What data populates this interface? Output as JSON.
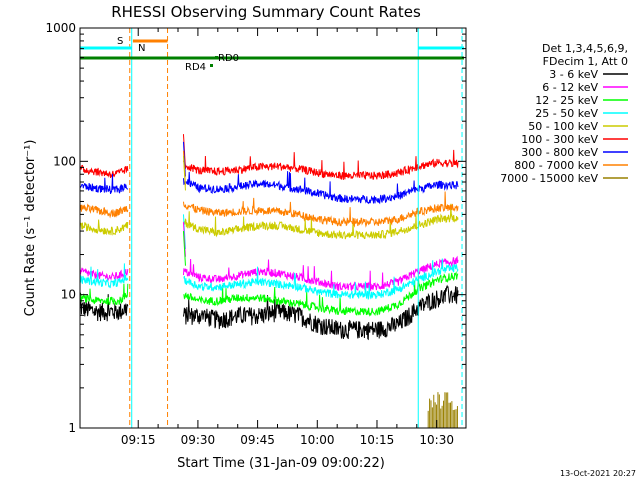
{
  "chart_data": {
    "type": "line",
    "title": "RHESSI Observing Summary Count Rates",
    "xlabel": "Start Time (31-Jan-09 09:00:22)",
    "ylabel": "Count Rate (s⁻¹ detector⁻¹)",
    "yscale": "log",
    "ylim": [
      1,
      1000
    ],
    "xlim_minutes": [
      0,
      97
    ],
    "yticks": [
      {
        "value": 1,
        "label": "1"
      },
      {
        "value": 10,
        "label": "10"
      },
      {
        "value": 100,
        "label": "100"
      },
      {
        "value": 1000,
        "label": "1000"
      }
    ],
    "xticks": [
      {
        "value": 14.63,
        "label": "09:15"
      },
      {
        "value": 29.63,
        "label": "09:30"
      },
      {
        "value": 44.63,
        "label": "09:45"
      },
      {
        "value": 59.63,
        "label": "10:00"
      },
      {
        "value": 74.63,
        "label": "10:15"
      },
      {
        "value": 89.63,
        "label": "10:30"
      }
    ],
    "legend": {
      "placement": "right",
      "header": [
        "Det 1,3,4,5,6,9,",
        "FDecim 1, Att 0"
      ],
      "entries": [
        {
          "label": "3 - 6 keV",
          "color": "#000000"
        },
        {
          "label": "6 - 12 keV",
          "color": "#ff00ff"
        },
        {
          "label": "12 - 25 keV",
          "color": "#00ff00"
        },
        {
          "label": "25 - 50 keV",
          "color": "#00ffff"
        },
        {
          "label": "50 - 100 keV",
          "color": "#cccc00"
        },
        {
          "label": "100 - 300 keV",
          "color": "#ff0000"
        },
        {
          "label": "300 - 800 keV",
          "color": "#0000ff"
        },
        {
          "label": "800 - 7000 keV",
          "color": "#ff8000"
        },
        {
          "label": "7000 - 15000 keV",
          "color": "#998000"
        }
      ]
    },
    "series": [
      {
        "name": "3 - 6 keV",
        "color": "#000000",
        "segments": [
          {
            "x": [
              0,
              4,
              8,
              10,
              12
            ],
            "y": [
              8,
              7.5,
              7.5,
              7.5,
              8
            ]
          },
          {
            "x": [
              26,
              30,
              35,
              40,
              45,
              50,
              55,
              60,
              65,
              68,
              72,
              75,
              80,
              85,
              88,
              90,
              93,
              95
            ],
            "y": [
              7,
              7,
              6.5,
              7,
              7,
              7.5,
              7,
              6,
              5.5,
              5.5,
              5.5,
              5.5,
              6,
              8,
              9,
              9.5,
              10,
              10
            ]
          }
        ]
      },
      {
        "name": "6 - 12 keV",
        "color": "#ff00ff",
        "segments": [
          {
            "x": [
              0,
              4,
              8,
              10,
              12
            ],
            "y": [
              15,
              14,
              13.5,
              14,
              15
            ]
          },
          {
            "x": [
              26,
              30,
              35,
              40,
              45,
              50,
              55,
              60,
              65,
              68,
              72,
              75,
              80,
              85,
              90,
              95
            ],
            "y": [
              15,
              13.5,
              13,
              14,
              15,
              14.5,
              13.5,
              12.5,
              11.5,
              11.5,
              11.5,
              11.5,
              12.5,
              15,
              17,
              18
            ]
          }
        ]
      },
      {
        "name": "12 - 25 keV",
        "color": "#00ff00",
        "segments": [
          {
            "x": [
              0,
              4,
              8,
              10,
              12
            ],
            "y": [
              9.5,
              9,
              9,
              9,
              10
            ]
          },
          {
            "x": [
              26,
              30,
              35,
              40,
              45,
              50,
              55,
              60,
              65,
              68,
              72,
              75,
              80,
              85,
              90,
              95
            ],
            "y": [
              10,
              9,
              9,
              9.5,
              9.5,
              9,
              8.5,
              8,
              7.5,
              7.5,
              7.5,
              7.5,
              8.5,
              11,
              13,
              14
            ]
          }
        ]
      },
      {
        "name": "25 - 50 keV",
        "color": "#00ffff",
        "segments": [
          {
            "x": [
              0,
              4,
              8,
              10,
              12
            ],
            "y": [
              13,
              12.5,
              12,
              12.5,
              13.5
            ]
          },
          {
            "x": [
              26,
              30,
              35,
              40,
              45,
              50,
              55,
              60,
              65,
              68,
              72,
              75,
              80,
              85,
              90,
              95
            ],
            "y": [
              13,
              11.5,
              11.5,
              12,
              12.5,
              12,
              11.5,
              10.5,
              10,
              10,
              10,
              10,
              11,
              13,
              15,
              16
            ]
          }
        ]
      },
      {
        "name": "50 - 100 keV",
        "color": "#cccc00",
        "segments": [
          {
            "x": [
              0,
              4,
              8,
              10,
              12
            ],
            "y": [
              33,
              31,
              30,
              31,
              33
            ]
          },
          {
            "x": [
              26,
              30,
              35,
              40,
              45,
              50,
              55,
              60,
              65,
              68,
              72,
              75,
              80,
              85,
              90,
              95
            ],
            "y": [
              35,
              31,
              29,
              31,
              33,
              33,
              31,
              29,
              28,
              28,
              28,
              28,
              30,
              33,
              37,
              38
            ]
          }
        ]
      },
      {
        "name": "100 - 300 keV",
        "color": "#ff0000",
        "segments": [
          {
            "x": [
              0,
              4,
              8,
              10,
              12
            ],
            "y": [
              88,
              84,
              80,
              82,
              88
            ]
          },
          {
            "x": [
              26,
              30,
              35,
              40,
              45,
              50,
              55,
              60,
              65,
              68,
              72,
              75,
              80,
              85,
              90,
              95
            ],
            "y": [
              95,
              85,
              84,
              87,
              91,
              92,
              88,
              82,
              78,
              78,
              78,
              78,
              82,
              92,
              98,
              96
            ]
          }
        ]
      },
      {
        "name": "300 - 800 keV",
        "color": "#0000ff",
        "segments": [
          {
            "x": [
              0,
              4,
              8,
              10,
              12
            ],
            "y": [
              66,
              63,
              61,
              62,
              66
            ]
          },
          {
            "x": [
              26,
              30,
              35,
              40,
              45,
              50,
              55,
              60,
              65,
              68,
              72,
              75,
              80,
              85,
              90,
              95
            ],
            "y": [
              72,
              63,
              62,
              65,
              68,
              66,
              62,
              57,
              53,
              52,
              52,
              52,
              55,
              62,
              67,
              66
            ]
          }
        ]
      },
      {
        "name": "800 - 7000 keV",
        "color": "#ff8000",
        "segments": [
          {
            "x": [
              0,
              4,
              8,
              10,
              12
            ],
            "y": [
              45,
              43,
              41,
              42,
              45
            ]
          },
          {
            "x": [
              26,
              30,
              35,
              40,
              45,
              50,
              55,
              60,
              65,
              68,
              72,
              75,
              80,
              85,
              90,
              95
            ],
            "y": [
              48,
              43,
              41,
              42,
              43,
              42,
              40,
              37,
              35,
              35,
              35,
              35,
              37,
              42,
              45,
              45
            ]
          }
        ]
      },
      {
        "name": "7000 - 15000 keV",
        "color": "#998000",
        "segments": [
          {
            "x": [
              87.5,
              95
            ],
            "y": [
              1.25,
              1.25
            ]
          }
        ]
      }
    ],
    "annotations": {
      "attenuator_flags": [
        {
          "label": "S",
          "color": "#ff8000"
        },
        {
          "label": "N",
          "color": "#00ffff"
        }
      ],
      "decimation_labels": [
        {
          "label": "RD4",
          "color": "#008000"
        },
        {
          "label": "RD0",
          "color": "#008000"
        }
      ],
      "interval_markers_minutes": {
        "night_start": 13,
        "night_end": 85,
        "saa_start": 22,
        "saa_end": 96,
        "transition_a": 12.5,
        "transition_b": 22.5
      }
    },
    "timestamp": "13-Oct-2021 20:27"
  }
}
